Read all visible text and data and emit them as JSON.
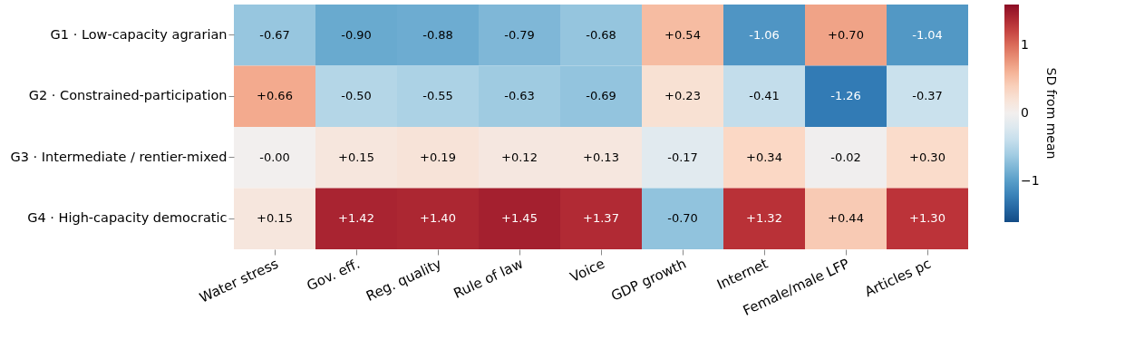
{
  "chart_data": {
    "type": "heatmap",
    "clabel": "SD from mean",
    "categories": [
      "Water stress",
      "Gov. eff.",
      "Reg. quality",
      "Rule of law",
      "Voice",
      "GDP growth",
      "Internet",
      "Female/male LFP",
      "Articles pc"
    ],
    "y_categories": [
      "G1 · Low-capacity agrarian",
      "G2 · Constrained-participation",
      "G3 · Intermediate / rentier-mixed",
      "G4 · High-capacity democratic"
    ],
    "cells": [
      [
        -0.67,
        -0.9,
        -0.88,
        -0.79,
        -0.68,
        0.54,
        -1.06,
        0.7,
        -1.04
      ],
      [
        0.66,
        -0.5,
        -0.55,
        -0.63,
        -0.69,
        0.23,
        -0.41,
        -1.26,
        -0.37
      ],
      [
        -0.0,
        0.15,
        0.19,
        0.12,
        0.13,
        -0.17,
        0.34,
        -0.02,
        0.3
      ],
      [
        0.15,
        1.42,
        1.4,
        1.45,
        1.37,
        -0.7,
        1.32,
        0.44,
        1.3
      ]
    ],
    "cell_labels": [
      [
        "-0.67",
        "-0.90",
        "-0.88",
        "-0.79",
        "-0.68",
        "+0.54",
        "-1.06",
        "+0.70",
        "-1.04"
      ],
      [
        "+0.66",
        "-0.50",
        "-0.55",
        "-0.63",
        "-0.69",
        "+0.23",
        "-0.41",
        "-1.26",
        "-0.37"
      ],
      [
        "-0.00",
        "+0.15",
        "+0.19",
        "+0.12",
        "+0.13",
        "-0.17",
        "+0.34",
        "-0.02",
        "+0.30"
      ],
      [
        "+0.15",
        "+1.42",
        "+1.40",
        "+1.45",
        "+1.37",
        "-0.70",
        "+1.32",
        "+0.44",
        "+1.30"
      ]
    ],
    "clim": [
      -1.6,
      1.6
    ],
    "cticks": [
      -1,
      0,
      1
    ]
  }
}
